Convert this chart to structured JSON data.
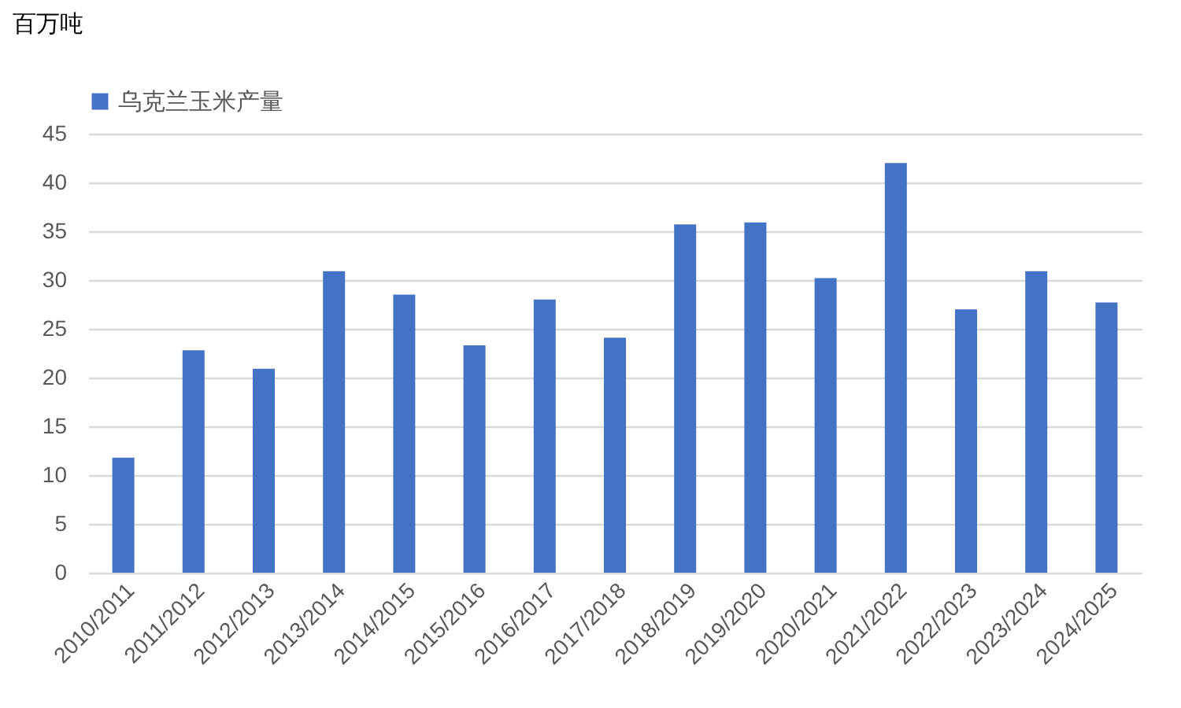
{
  "chart_data": {
    "type": "bar",
    "ylabel": "百万吨",
    "categories": [
      "2010/2011",
      "2011/2012",
      "2012/2013",
      "2013/2014",
      "2014/2015",
      "2015/2016",
      "2016/2017",
      "2017/2018",
      "2018/2019",
      "2019/2020",
      "2020/2021",
      "2021/2022",
      "2022/2023",
      "2023/2024",
      "2024/2025"
    ],
    "series": [
      {
        "name": "乌克兰玉米产量",
        "color": "#4472c4",
        "values": [
          11.8,
          22.8,
          20.9,
          30.9,
          28.5,
          23.3,
          28.0,
          24.1,
          35.7,
          35.9,
          30.2,
          42.0,
          27.0,
          30.9,
          27.7
        ]
      }
    ],
    "ylim": [
      0,
      45
    ],
    "yticks": [
      0,
      5,
      10,
      15,
      20,
      25,
      30,
      35,
      40,
      45
    ],
    "grid": "y",
    "legend": "top"
  }
}
